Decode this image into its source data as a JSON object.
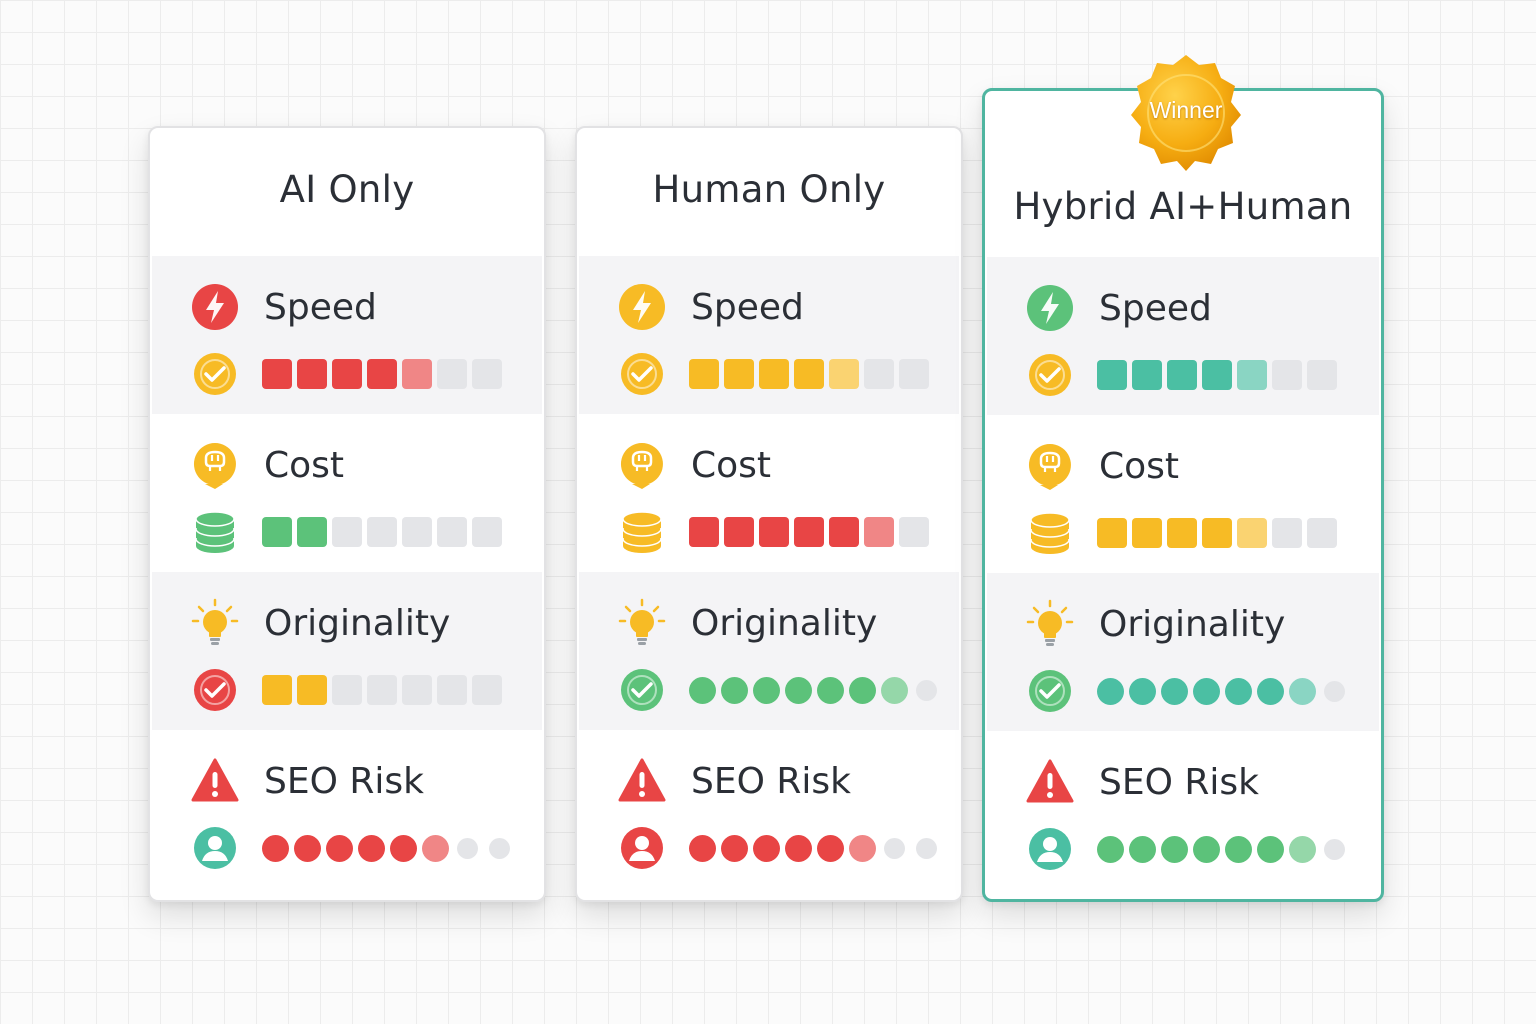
{
  "colors": {
    "red": "#e84545",
    "yellow": "#f7bb25",
    "green": "#5cc27a",
    "teal": "#4bbfa3",
    "gray": "#e4e5e8",
    "winner_border": "#4fb5a0"
  },
  "cards": [
    {
      "title": "AI Only",
      "rows": [
        {
          "label": "Speed",
          "icon": "lightning-icon",
          "icon_color": "#e84545",
          "rate_icon": "check-circle-icon",
          "rate_color": "#f7bb25",
          "meter": "squares",
          "filled": 5,
          "total": 7,
          "fill_color": "#e84545"
        },
        {
          "label": "Cost",
          "icon": "piggy-bank-icon",
          "icon_color": "#f7bb25",
          "rate_icon": "coin-stack-icon",
          "rate_color": "#5cc27a",
          "meter": "squares",
          "filled": 2,
          "total": 7,
          "fill_color": "#5cc27a"
        },
        {
          "label": "Originality",
          "icon": "lightbulb-icon",
          "icon_color": "#f7bb25",
          "rate_icon": "check-circle-icon",
          "rate_color": "#e84545",
          "meter": "squares",
          "filled": 2,
          "total": 7,
          "fill_color": "#f7bb25"
        },
        {
          "label": "SEO Risk",
          "icon": "warning-icon",
          "icon_color": "#e84545",
          "rate_icon": "user-icon",
          "rate_color": "#4bbfa3",
          "meter": "dots",
          "filled": 6,
          "total": 8,
          "fill_color": "#e84545"
        }
      ]
    },
    {
      "title": "Human Only",
      "rows": [
        {
          "label": "Speed",
          "icon": "lightning-icon",
          "icon_color": "#f7bb25",
          "rate_icon": "check-circle-icon",
          "rate_color": "#f7bb25",
          "meter": "squares",
          "filled": 5,
          "total": 7,
          "fill_color": "#f7bb25"
        },
        {
          "label": "Cost",
          "icon": "piggy-bank-icon",
          "icon_color": "#f7bb25",
          "rate_icon": "coin-stack-icon",
          "rate_color": "#f7bb25",
          "meter": "squares",
          "filled": 6,
          "total": 7,
          "fill_color": "#e84545"
        },
        {
          "label": "Originality",
          "icon": "lightbulb-icon",
          "icon_color": "#f7bb25",
          "rate_icon": "check-circle-icon",
          "rate_color": "#5cc27a",
          "meter": "dots",
          "filled": 7,
          "total": 8,
          "fill_color": "#5cc27a"
        },
        {
          "label": "SEO Risk",
          "icon": "warning-icon",
          "icon_color": "#e84545",
          "rate_icon": "user-icon",
          "rate_color": "#e84545",
          "meter": "dots",
          "filled": 6,
          "total": 8,
          "fill_color": "#e84545"
        }
      ]
    },
    {
      "title": "Hybrid AI+Human",
      "winner": true,
      "badge": "Winner",
      "rows": [
        {
          "label": "Speed",
          "icon": "lightning-icon",
          "icon_color": "#5cc27a",
          "rate_icon": "check-circle-icon",
          "rate_color": "#f7bb25",
          "meter": "squares",
          "filled": 5,
          "total": 7,
          "fill_color": "#4bbfa3"
        },
        {
          "label": "Cost",
          "icon": "piggy-bank-icon",
          "icon_color": "#f7bb25",
          "rate_icon": "coin-stack-icon",
          "rate_color": "#f7bb25",
          "meter": "squares",
          "filled": 5,
          "total": 7,
          "fill_color": "#f7bb25"
        },
        {
          "label": "Originality",
          "icon": "lightbulb-icon",
          "icon_color": "#f7bb25",
          "rate_icon": "check-circle-icon",
          "rate_color": "#5cc27a",
          "meter": "dots",
          "filled": 7,
          "total": 8,
          "fill_color": "#4bbfa3"
        },
        {
          "label": "SEO Risk",
          "icon": "warning-icon",
          "icon_color": "#e84545",
          "rate_icon": "user-icon",
          "rate_color": "#4bbfa3",
          "meter": "dots",
          "filled": 7,
          "total": 8,
          "fill_color": "#5cc27a"
        }
      ]
    }
  ]
}
